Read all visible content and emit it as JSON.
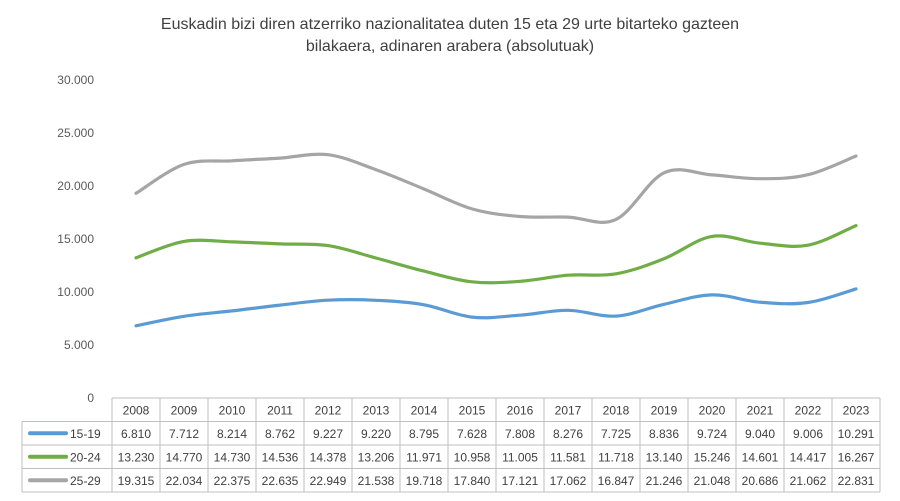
{
  "chart_data": {
    "type": "line",
    "title_line1": "Euskadin bizi diren atzerriko nazionalitatea duten 15 eta 29 urte bitarteko gazteen",
    "title_line2": "bilakaera, adinaren arabera (absolutuak)",
    "categories": [
      "2008",
      "2009",
      "2010",
      "2011",
      "2012",
      "2013",
      "2014",
      "2015",
      "2016",
      "2017",
      "2018",
      "2019",
      "2020",
      "2021",
      "2022",
      "2023"
    ],
    "ylim": [
      0,
      30000
    ],
    "y_ticks": [
      0,
      5000,
      10000,
      15000,
      20000,
      25000,
      30000
    ],
    "y_tick_labels": [
      "0",
      "5.000",
      "10.000",
      "15.000",
      "20.000",
      "25.000",
      "30.000"
    ],
    "grid": true,
    "legend": "data-table",
    "series": [
      {
        "name": "15-19",
        "color": "#5b9bd5",
        "values": [
          6810,
          7712,
          8214,
          8762,
          9227,
          9220,
          8795,
          7628,
          7808,
          8276,
          7725,
          8836,
          9724,
          9040,
          9006,
          10291
        ],
        "labels": [
          "6.810",
          "7.712",
          "8.214",
          "8.762",
          "9.227",
          "9.220",
          "8.795",
          "7.628",
          "7.808",
          "8.276",
          "7.725",
          "8.836",
          "9.724",
          "9.040",
          "9.006",
          "10.291"
        ]
      },
      {
        "name": "20-24",
        "color": "#70ad47",
        "values": [
          13230,
          14770,
          14730,
          14536,
          14378,
          13206,
          11971,
          10958,
          11005,
          11581,
          11718,
          13140,
          15246,
          14601,
          14417,
          16267
        ],
        "labels": [
          "13.230",
          "14.770",
          "14.730",
          "14.536",
          "14.378",
          "13.206",
          "11.971",
          "10.958",
          "11.005",
          "11.581",
          "11.718",
          "13.140",
          "15.246",
          "14.601",
          "14.417",
          "16.267"
        ]
      },
      {
        "name": "25-29",
        "color": "#a5a5a5",
        "values": [
          19315,
          22034,
          22375,
          22635,
          22949,
          21538,
          19718,
          17840,
          17121,
          17062,
          16847,
          21246,
          21048,
          20686,
          21062,
          22831
        ],
        "labels": [
          "19.315",
          "22.034",
          "22.375",
          "22.635",
          "22.949",
          "21.538",
          "19.718",
          "17.840",
          "17.121",
          "17.062",
          "16.847",
          "21.246",
          "21.048",
          "20.686",
          "21.062",
          "22.831"
        ]
      }
    ]
  }
}
